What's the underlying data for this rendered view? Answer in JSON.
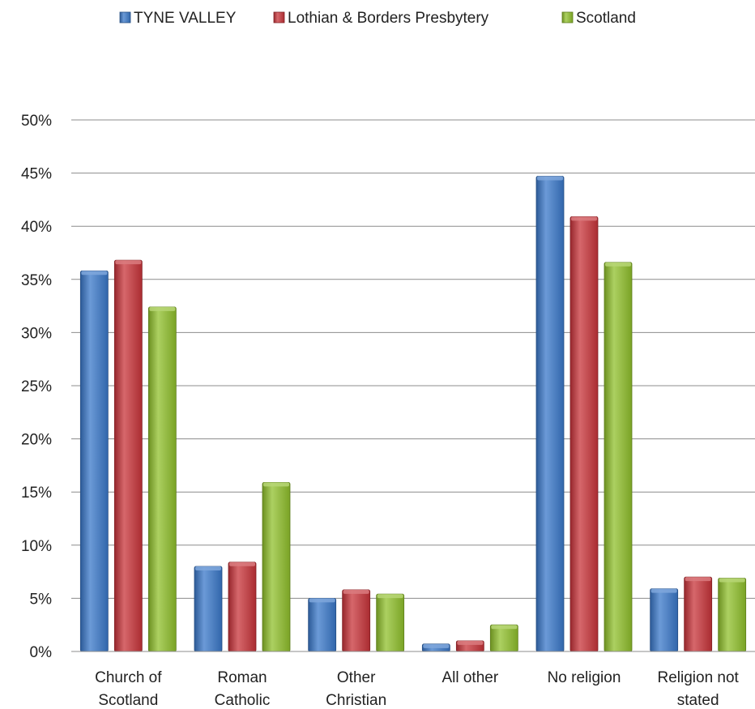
{
  "chart_data": {
    "type": "bar",
    "title": "",
    "xlabel": "",
    "ylabel": "",
    "ylim": [
      0,
      50
    ],
    "y_ticks": [
      "0%",
      "5%",
      "10%",
      "15%",
      "20%",
      "25%",
      "30%",
      "35%",
      "40%",
      "45%",
      "50%"
    ],
    "y_tick_values": [
      0,
      5,
      10,
      15,
      20,
      25,
      30,
      35,
      40,
      45,
      50
    ],
    "grid": true,
    "legend_position": "top",
    "categories": [
      [
        "Church of",
        "Scotland"
      ],
      [
        "Roman",
        "Catholic"
      ],
      [
        "Other",
        "Christian"
      ],
      [
        "All other"
      ],
      [
        "No religion"
      ],
      [
        "Religion not",
        "stated"
      ]
    ],
    "series": [
      {
        "name": "TYNE VALLEY",
        "color": "#3a78c9",
        "values": [
          35.8,
          8.0,
          5.0,
          0.7,
          44.7,
          5.9
        ]
      },
      {
        "name": "Lothian & Borders Presbytery",
        "color": "#c8343a",
        "values": [
          36.8,
          8.4,
          5.8,
          1.0,
          40.9,
          7.0
        ]
      },
      {
        "name": "Scotland",
        "color": "#90c02c",
        "values": [
          32.4,
          15.9,
          5.4,
          2.5,
          36.6,
          6.9
        ]
      }
    ]
  }
}
